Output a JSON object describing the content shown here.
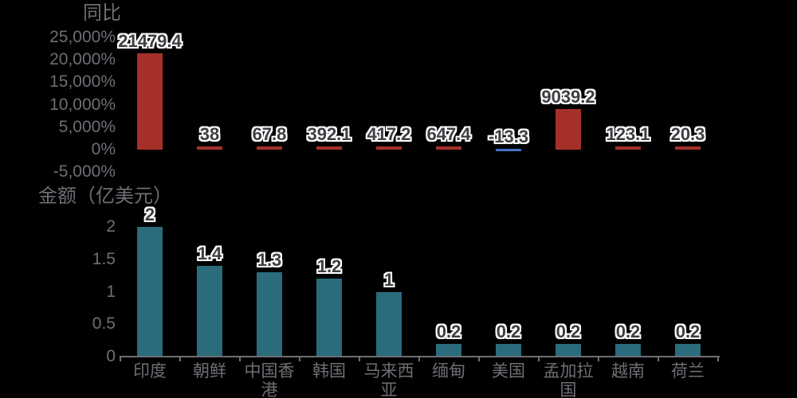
{
  "page": {
    "background": "#000000"
  },
  "colors": {
    "axis_text": "#6E6E76",
    "axis_line": "#6E6E76",
    "data_label_fill": "#3E3E44",
    "data_label_outline": "#FFFFFF",
    "yoy_bar": "#A63029",
    "yoy_negative_bar": "#4472C4",
    "amount_bar": "#2A6B7C"
  },
  "chart_data": [
    {
      "type": "bar",
      "title": "同比",
      "categories": [
        "印度",
        "朝鲜",
        "中国香港",
        "韩国",
        "马来西亚",
        "缅甸",
        "美国",
        "孟加拉国",
        "越南",
        "荷兰"
      ],
      "values": [
        21479.4,
        38,
        67.8,
        392.1,
        417.2,
        647.4,
        -13.3,
        9039.2,
        123.1,
        20.3
      ],
      "value_labels": [
        "21479.4",
        "38",
        "67.8",
        "392.1",
        "417.2",
        "647.4",
        "-13.3",
        "9039.2",
        "123.1",
        "20.3"
      ],
      "ytick_labels": [
        "25,000%",
        "20,000%",
        "15,000%",
        "10,000%",
        "5,000%",
        "0%",
        "-5,000%"
      ],
      "ylim": [
        -5000,
        25000
      ],
      "ylabel": "",
      "xlabel": "",
      "grid": false,
      "legend": "none",
      "bar_color": "#A63029",
      "negative_bar_color": "#4472C4",
      "show_x_axis_line": false
    },
    {
      "type": "bar",
      "title": "金额（亿美元）",
      "categories": [
        "印度",
        "朝鲜",
        "中国香港",
        "韩国",
        "马来西亚",
        "缅甸",
        "美国",
        "孟加拉国",
        "越南",
        "荷兰"
      ],
      "values": [
        2,
        1.4,
        1.3,
        1.2,
        1,
        0.2,
        0.2,
        0.2,
        0.2,
        0.2
      ],
      "value_labels": [
        "2",
        "1.4",
        "1.3",
        "1.2",
        "1",
        "0.2",
        "0.2",
        "0.2",
        "0.2",
        "0.2"
      ],
      "ytick_labels": [
        "2",
        "1.5",
        "1",
        "0.5",
        "0"
      ],
      "ylim": [
        0,
        2
      ],
      "ylabel": "",
      "xlabel": "",
      "grid": false,
      "legend": "none",
      "bar_color": "#2A6B7C",
      "show_x_axis_line": true
    }
  ]
}
